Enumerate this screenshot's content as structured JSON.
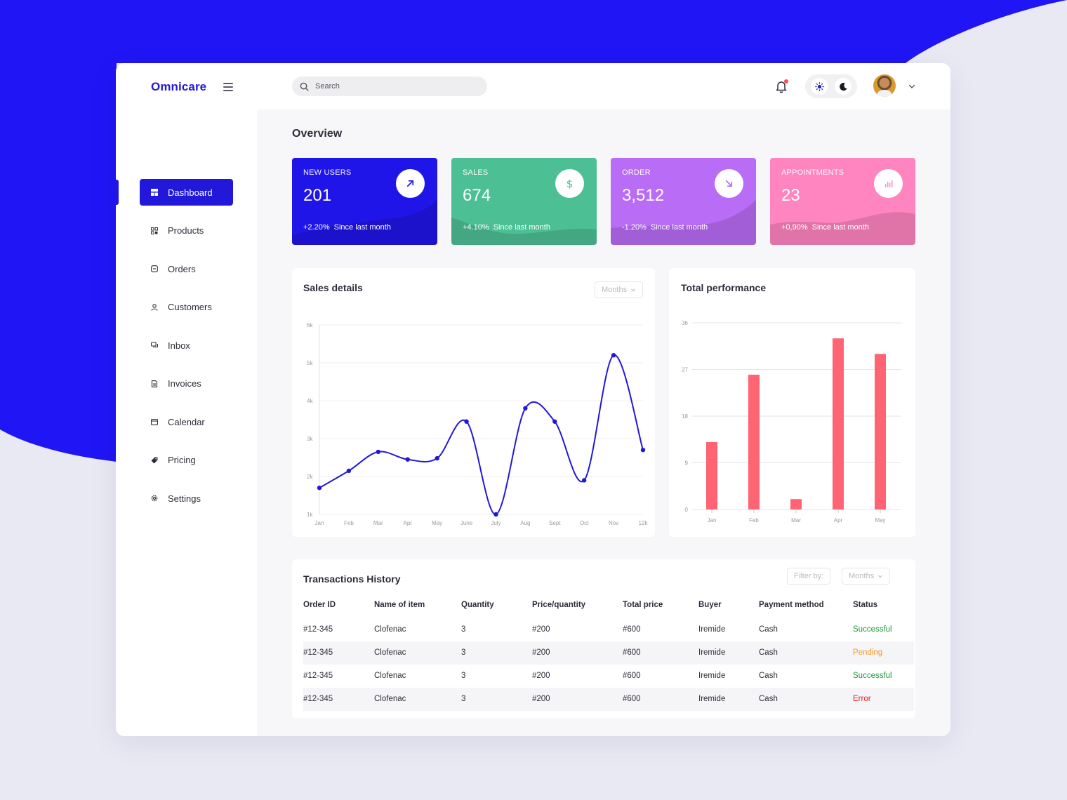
{
  "app": {
    "brand": "Omnicare",
    "search_placeholder": "Search"
  },
  "colors": {
    "brand": "#2218d9",
    "new_users": "#2015e8",
    "sales": "#4cbf94",
    "order": "#b96cf5",
    "appointments": "#ff85c0",
    "bar": "#fe6472",
    "status_success": "#1f9a3c",
    "status_pending": "#f5972d",
    "status_error": "#e51e1e"
  },
  "sidebar": {
    "items": [
      {
        "label": "Dashboard",
        "icon": "dashboard-icon",
        "active": true
      },
      {
        "label": "Products",
        "icon": "products-icon"
      },
      {
        "label": "Orders",
        "icon": "orders-icon"
      },
      {
        "label": "Customers",
        "icon": "customers-icon"
      },
      {
        "label": "Inbox",
        "icon": "inbox-icon"
      },
      {
        "label": "Invoices",
        "icon": "invoices-icon"
      },
      {
        "label": "Calendar",
        "icon": "calendar-icon"
      },
      {
        "label": "Pricing",
        "icon": "pricing-icon"
      },
      {
        "label": "Settings",
        "icon": "settings-icon"
      }
    ]
  },
  "overview": {
    "title": "Overview",
    "cards": [
      {
        "label": "NEW USERS",
        "value": "201",
        "change": "+2.20%",
        "since": "Since last month",
        "icon": "arrow-up-right-icon"
      },
      {
        "label": "SALES",
        "value": "674",
        "change": "+4.10%",
        "since": "Since last month",
        "icon": "dollar-icon"
      },
      {
        "label": "ORDER",
        "value": "3,512",
        "change": "-1.20%",
        "since": "Since last month",
        "icon": "arrow-down-right-icon"
      },
      {
        "label": "APPOINTMENTS",
        "value": "23",
        "change": "+0,90%",
        "since": "Since last month",
        "icon": "bar-chart-icon"
      }
    ]
  },
  "sales_details": {
    "title": "Sales details",
    "period": "Months"
  },
  "total_performance": {
    "title": "Total performance"
  },
  "chart_data": [
    {
      "type": "line",
      "title": "Sales details",
      "x": [
        "Jan",
        "Feb",
        "Mar",
        "Apr",
        "May",
        "June",
        "July",
        "Aug",
        "Sept",
        "Oct",
        "Nov",
        "12k"
      ],
      "yticks": [
        "1k",
        "2k",
        "3k",
        "4k",
        "5k",
        "6k"
      ],
      "ylim": [
        1000,
        6000
      ],
      "series": [
        {
          "values": [
            1700,
            2150,
            2650,
            2450,
            2480,
            3450,
            1000,
            3800,
            3450,
            1900,
            5200,
            2700
          ]
        }
      ],
      "grid": true
    },
    {
      "type": "bar",
      "title": "Total performance",
      "categories": [
        "Jan",
        "Feb",
        "Mar",
        "Apr",
        "May"
      ],
      "values": [
        13,
        26,
        2,
        33,
        30
      ],
      "yticks": [
        "0",
        "9",
        "18",
        "27",
        "36"
      ],
      "ylim": [
        0,
        36
      ],
      "grid": true
    }
  ],
  "transactions": {
    "title": "Transactions History",
    "filter_label": "Filter by:",
    "filter_value": "Months",
    "columns": [
      "Order ID",
      "Name of item",
      "Quantity",
      "Price/quantity",
      "Total price",
      "Buyer",
      "Payment method",
      "Status"
    ],
    "rows": [
      {
        "order_id": "#12-345",
        "item": "Clofenac",
        "quantity": "3",
        "price": "#200",
        "total": "#600",
        "buyer": "Iremide",
        "method": "Cash",
        "status": "Successful",
        "status_type": "success"
      },
      {
        "order_id": "#12-345",
        "item": "Clofenac",
        "quantity": "3",
        "price": "#200",
        "total": "#600",
        "buyer": "Iremide",
        "method": "Cash",
        "status": "Pending",
        "status_type": "pending"
      },
      {
        "order_id": "#12-345",
        "item": "Clofenac",
        "quantity": "3",
        "price": "#200",
        "total": "#600",
        "buyer": "Iremide",
        "method": "Cash",
        "status": "Successful",
        "status_type": "success"
      },
      {
        "order_id": "#12-345",
        "item": "Clofenac",
        "quantity": "3",
        "price": "#200",
        "total": "#600",
        "buyer": "Iremide",
        "method": "Cash",
        "status": "Error",
        "status_type": "error"
      }
    ]
  }
}
